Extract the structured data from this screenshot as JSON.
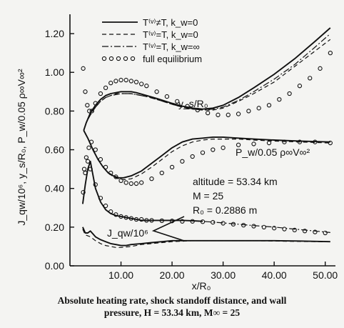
{
  "chart_data": {
    "type": "line",
    "title": "",
    "xlabel": "x/R₀",
    "ylabel": "J_qw/10⁶, y_s/R₀, P_w/0.05 ρ∞V∞²",
    "xlim": [
      0,
      52
    ],
    "ylim": [
      0,
      1.3
    ],
    "x_ticks": [
      "10.00",
      "20.00",
      "30.00",
      "40.00",
      "50.00"
    ],
    "y_ticks": [
      "0.00",
      "0.20",
      "0.40",
      "0.60",
      "0.80",
      "1.00",
      "1.20"
    ],
    "x_tick_values": [
      10,
      20,
      30,
      40,
      50
    ],
    "y_tick_values": [
      0,
      0.2,
      0.4,
      0.6,
      0.8,
      1.0,
      1.2
    ],
    "legend": {
      "placement": "top-center",
      "entries": [
        {
          "label": "T⁽ᵛ⁾≠T,  k_w=0",
          "style": "solid"
        },
        {
          "label": "T⁽ᵛ⁾=T,  k_w=0",
          "style": "dashed"
        },
        {
          "label": "T⁽ᵛ⁾=T,  k_w=∞",
          "style": "dashdot"
        },
        {
          "label": "full equilibrium",
          "style": "circles"
        }
      ]
    },
    "annotations": {
      "ys": "y_s/R₀",
      "pw": "P_w/0.05 ρ∞V∞²",
      "jqw": "J_qw/10⁶",
      "cond1": "altitude = 53.34 km",
      "cond2": "M = 25",
      "cond3": "R₀ = 0.2886 m"
    },
    "series": [
      {
        "group": "ys",
        "style": "solid",
        "x": [
          2.7,
          3.2,
          4,
          5,
          6,
          7,
          8,
          9,
          10,
          11,
          12,
          13,
          15,
          17,
          20,
          22,
          24,
          26,
          28,
          30,
          33,
          36,
          40,
          44,
          48,
          51
        ],
        "y": [
          0.7,
          0.74,
          0.79,
          0.83,
          0.86,
          0.88,
          0.89,
          0.895,
          0.9,
          0.9,
          0.9,
          0.895,
          0.88,
          0.865,
          0.84,
          0.825,
          0.815,
          0.81,
          0.815,
          0.83,
          0.87,
          0.92,
          0.99,
          1.07,
          1.16,
          1.23
        ]
      },
      {
        "group": "ys",
        "style": "dashed",
        "x": [
          2.7,
          3.2,
          4,
          5,
          6,
          7,
          8,
          9,
          10,
          11,
          12,
          13,
          15,
          17,
          20,
          22,
          24,
          26,
          28,
          30,
          33,
          36,
          40,
          44,
          48,
          51
        ],
        "y": [
          0.7,
          0.74,
          0.78,
          0.82,
          0.85,
          0.87,
          0.88,
          0.89,
          0.89,
          0.89,
          0.89,
          0.885,
          0.875,
          0.86,
          0.835,
          0.82,
          0.81,
          0.805,
          0.805,
          0.815,
          0.85,
          0.89,
          0.95,
          1.03,
          1.11,
          1.17
        ]
      },
      {
        "group": "ys",
        "style": "dashdot",
        "x": [
          2.7,
          3.2,
          4,
          5,
          6,
          7,
          8,
          9,
          10,
          11,
          12,
          13,
          15,
          17,
          20,
          22,
          24,
          26,
          28,
          30,
          33,
          36,
          40,
          44,
          48,
          51
        ],
        "y": [
          0.7,
          0.74,
          0.78,
          0.82,
          0.85,
          0.87,
          0.88,
          0.885,
          0.89,
          0.89,
          0.89,
          0.885,
          0.875,
          0.86,
          0.835,
          0.82,
          0.81,
          0.805,
          0.81,
          0.82,
          0.855,
          0.9,
          0.965,
          1.04,
          1.13,
          1.2
        ]
      },
      {
        "group": "ys",
        "style": "circles",
        "x": [
          2.6,
          3.0,
          3.4,
          3.8,
          4.3,
          5,
          6,
          7,
          8,
          9,
          10,
          11,
          12,
          13,
          14,
          15,
          17,
          19,
          21,
          23,
          25,
          27,
          29,
          31,
          33,
          35,
          37,
          39,
          41,
          43,
          45,
          47,
          49,
          51
        ],
        "y": [
          1.02,
          0.9,
          0.83,
          0.8,
          0.8,
          0.84,
          0.89,
          0.92,
          0.945,
          0.955,
          0.96,
          0.96,
          0.955,
          0.95,
          0.94,
          0.93,
          0.9,
          0.875,
          0.85,
          0.825,
          0.805,
          0.79,
          0.78,
          0.78,
          0.785,
          0.8,
          0.815,
          0.83,
          0.86,
          0.89,
          0.93,
          0.97,
          1.02,
          1.1
        ]
      },
      {
        "group": "pw",
        "style": "solid",
        "x": [
          2.7,
          3.5,
          4.5,
          5.5,
          6.5,
          7.5,
          8.5,
          9.5,
          10.5,
          12,
          14,
          16,
          18,
          20,
          22,
          24,
          26,
          28,
          30,
          33,
          36,
          40,
          45,
          51
        ],
        "y": [
          0.7,
          0.66,
          0.6,
          0.55,
          0.51,
          0.48,
          0.465,
          0.455,
          0.455,
          0.465,
          0.49,
          0.53,
          0.57,
          0.61,
          0.64,
          0.655,
          0.66,
          0.665,
          0.665,
          0.66,
          0.655,
          0.65,
          0.645,
          0.64
        ]
      },
      {
        "group": "pw",
        "style": "dashed",
        "x": [
          2.7,
          3.5,
          4.5,
          5.5,
          6.5,
          7.5,
          8.5,
          9.5,
          10.5,
          12,
          14,
          16,
          18,
          20,
          22,
          24,
          26,
          28,
          30,
          33,
          36,
          40,
          45,
          51
        ],
        "y": [
          0.7,
          0.66,
          0.6,
          0.55,
          0.51,
          0.48,
          0.46,
          0.45,
          0.445,
          0.45,
          0.475,
          0.51,
          0.55,
          0.59,
          0.62,
          0.64,
          0.65,
          0.655,
          0.655,
          0.655,
          0.65,
          0.645,
          0.64,
          0.635
        ]
      },
      {
        "group": "pw",
        "style": "circles",
        "x": [
          2.8,
          3.2,
          3.7,
          4.2,
          5,
          6,
          7,
          8,
          9,
          10,
          11,
          12,
          13,
          14,
          16,
          18,
          20,
          22,
          24,
          26,
          28,
          30,
          33,
          36,
          39,
          42,
          45,
          48,
          51
        ],
        "y": [
          0.5,
          0.56,
          0.61,
          0.64,
          0.6,
          0.55,
          0.51,
          0.48,
          0.46,
          0.44,
          0.43,
          0.425,
          0.425,
          0.43,
          0.45,
          0.48,
          0.51,
          0.54,
          0.565,
          0.585,
          0.6,
          0.61,
          0.625,
          0.63,
          0.635,
          0.64,
          0.64,
          0.64,
          0.635
        ]
      },
      {
        "group": "jqw_upper",
        "style": "solid",
        "x": [
          2.5,
          3,
          3.5,
          4,
          5,
          6,
          7,
          8,
          9,
          10,
          11,
          12,
          13,
          14,
          16,
          18,
          20,
          22,
          24,
          26
        ],
        "y": [
          0.32,
          0.42,
          0.5,
          0.54,
          0.4,
          0.33,
          0.29,
          0.27,
          0.26,
          0.255,
          0.25,
          0.245,
          0.24,
          0.235,
          0.235,
          0.235,
          0.235,
          0.235,
          0.233,
          0.23
        ]
      },
      {
        "group": "jqw_upper",
        "style": "circles",
        "x": [
          2.6,
          3.0,
          3.5,
          4,
          5,
          6,
          7,
          8,
          9,
          10,
          11,
          12,
          13,
          14,
          15,
          16,
          18,
          20,
          22,
          24,
          26,
          28,
          30,
          32,
          34,
          36,
          38,
          40,
          42,
          44,
          46,
          48,
          50
        ],
        "y": [
          0.38,
          0.48,
          0.54,
          0.5,
          0.42,
          0.35,
          0.31,
          0.28,
          0.265,
          0.255,
          0.25,
          0.245,
          0.24,
          0.24,
          0.235,
          0.235,
          0.233,
          0.232,
          0.23,
          0.23,
          0.228,
          0.225,
          0.22,
          0.215,
          0.21,
          0.205,
          0.2,
          0.195,
          0.19,
          0.185,
          0.18,
          0.175,
          0.17
        ]
      },
      {
        "group": "jqw_upper",
        "style": "dashdot",
        "x": [
          24,
          27,
          30,
          33,
          36,
          40,
          44,
          48,
          51
        ],
        "y": [
          0.233,
          0.228,
          0.222,
          0.215,
          0.208,
          0.2,
          0.19,
          0.18,
          0.172
        ]
      },
      {
        "group": "jqw_lower",
        "style": "solid",
        "x": [
          2.5,
          3,
          3.5,
          4,
          4.5,
          5,
          6,
          7,
          8,
          9,
          10,
          11,
          12,
          14,
          16,
          18,
          20,
          24,
          28,
          32,
          36,
          40,
          45,
          51
        ],
        "y": [
          0.2,
          0.17,
          0.17,
          0.18,
          0.165,
          0.15,
          0.135,
          0.125,
          0.115,
          0.11,
          0.105,
          0.105,
          0.11,
          0.115,
          0.12,
          0.125,
          0.13,
          0.13,
          0.13,
          0.13,
          0.13,
          0.13,
          0.128,
          0.125
        ]
      },
      {
        "group": "jqw_lower",
        "style": "dashed",
        "x": [
          2.5,
          3,
          4,
          5,
          6,
          7,
          8,
          9,
          10,
          12,
          14,
          16,
          18,
          20,
          24,
          28,
          32,
          36,
          40,
          45,
          51
        ],
        "y": [
          0.19,
          0.16,
          0.15,
          0.13,
          0.115,
          0.105,
          0.1,
          0.095,
          0.095,
          0.1,
          0.11,
          0.115,
          0.12,
          0.125,
          0.13,
          0.13,
          0.13,
          0.13,
          0.128,
          0.126,
          0.124
        ]
      }
    ]
  },
  "caption": {
    "line1": "Absolute heating rate, shock standoff distance, and wall",
    "line2": "pressure, H = 53.34 km, M∞ = 25"
  }
}
